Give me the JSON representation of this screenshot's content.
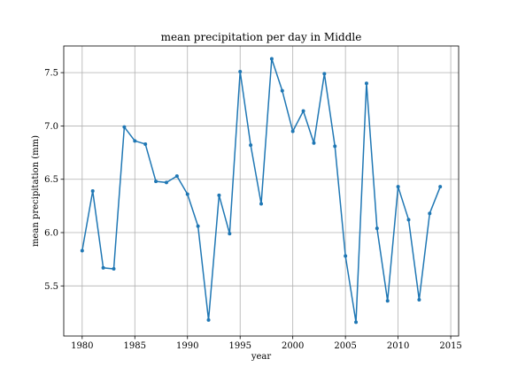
{
  "chart_data": {
    "type": "line",
    "title": "mean precipitation per day in Middle",
    "xlabel": "year",
    "ylabel": "mean precipitation (mm)",
    "xlim": [
      1978.25,
      2015.75
    ],
    "ylim": [
      5.03,
      7.75
    ],
    "xticks": [
      1980,
      1985,
      1990,
      1995,
      2000,
      2005,
      2010,
      2015
    ],
    "yticks": [
      5.5,
      6.0,
      6.5,
      7.0,
      7.5
    ],
    "ytick_labels": [
      "5.5",
      "6.0",
      "6.5",
      "7.0",
      "7.5"
    ],
    "grid": true,
    "color": "#1f77b4",
    "series": [
      {
        "x": [
          1980,
          1981,
          1982,
          1983,
          1984,
          1985,
          1986,
          1987,
          1988,
          1989,
          1990,
          1991,
          1992,
          1993,
          1994,
          1995,
          1996,
          1997,
          1998,
          1999,
          2000,
          2001,
          2002,
          2003,
          2004,
          2005,
          2006,
          2007,
          2008,
          2009,
          2010,
          2011,
          2012,
          2013,
          2014
        ],
        "y": [
          5.83,
          6.39,
          5.67,
          5.66,
          6.99,
          6.86,
          6.83,
          6.48,
          6.47,
          6.53,
          6.36,
          6.06,
          5.18,
          6.35,
          5.99,
          7.51,
          6.82,
          6.27,
          7.63,
          7.33,
          6.95,
          7.14,
          6.84,
          7.49,
          6.81,
          5.78,
          5.16,
          7.4,
          6.04,
          5.36,
          6.43,
          6.12,
          5.37,
          6.18,
          6.43
        ]
      }
    ]
  }
}
